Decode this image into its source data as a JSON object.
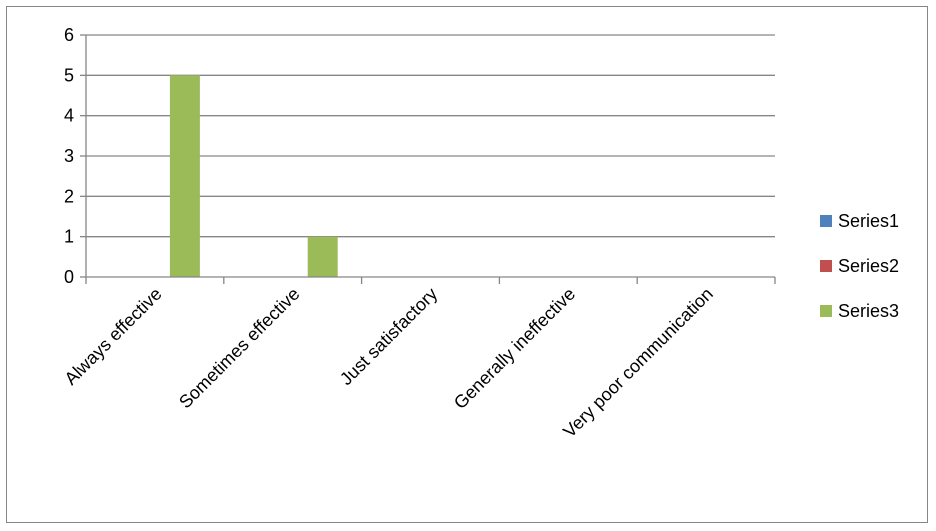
{
  "chart_data": {
    "type": "bar",
    "title": "",
    "xlabel": "",
    "ylabel": "",
    "categories": [
      "Always effective",
      "Sometimes effective",
      "Just satisfactory",
      "Generally ineffective",
      "Very poor communication"
    ],
    "series": [
      {
        "name": "Series1",
        "color": "#4F81BD",
        "values": [
          0,
          0,
          0,
          0,
          0
        ]
      },
      {
        "name": "Series2",
        "color": "#C0504D",
        "values": [
          0,
          0,
          0,
          0,
          0
        ]
      },
      {
        "name": "Series3",
        "color": "#9BBB59",
        "values": [
          5,
          1,
          0,
          0,
          0
        ]
      }
    ],
    "ylim": [
      0,
      6
    ],
    "yticks": [
      0,
      1,
      2,
      3,
      4,
      5,
      6
    ],
    "grid": true,
    "legend_position": "right",
    "gridline_color": "#868686",
    "axis_color": "#868686"
  }
}
